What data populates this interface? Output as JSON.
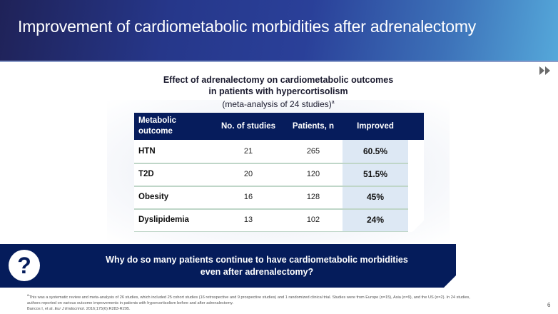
{
  "header": {
    "title": "Improvement of cardiometabolic morbidities after adrenalectomy",
    "nav_icon": "fast-forward-icon"
  },
  "table_title": {
    "line1": "Effect of adrenalectomy on cardiometabolic outcomes",
    "line2": "in patients with hypercortisolism",
    "line3": "(meta-analysis of 24 studies)",
    "line3_sup": "a"
  },
  "table": {
    "headers": {
      "outcome_line1": "Metabolic",
      "outcome_line2": "outcome",
      "studies": "No. of studies",
      "patients": "Patients, n",
      "improved": "Improved"
    },
    "rows": [
      {
        "outcome": "HTN",
        "studies": "21",
        "patients": "265",
        "improved": "60.5%"
      },
      {
        "outcome": "T2D",
        "studies": "20",
        "patients": "120",
        "improved": "51.5%"
      },
      {
        "outcome": "Obesity",
        "studies": "16",
        "patients": "128",
        "improved": "45%"
      },
      {
        "outcome": "Dyslipidemia",
        "studies": "13",
        "patients": "102",
        "improved": "24%"
      }
    ],
    "colors": {
      "header_bg": "#061c5c",
      "highlight_bg": "#dde8f4"
    }
  },
  "banner": {
    "icon": "question-mark-icon",
    "icon_glyph": "?",
    "line1": "Why do so many patients continue to have cardiometabolic morbidities",
    "line2": "even after adrenalectomy?"
  },
  "footnote": {
    "sup": "a",
    "line1": "This was a systematic review and meta-analysis of 26 studies, which included 25 cohort studies (16 retrospective and 9 prospective studies) and 1 randomized clinical trial. Studies were from Europe (n=15), Asia (n=9), and the US (n=2). In 24 studies, authors reported on various outcome improvements in patients with hypercortisolism before and after adrenalectomy.",
    "ref_authors": "Bancos I, et al. ",
    "ref_journal": "Eur J Endocrinol",
    "ref_rest": ". 2016;175(6):R283-R295."
  },
  "page_number": "6"
}
